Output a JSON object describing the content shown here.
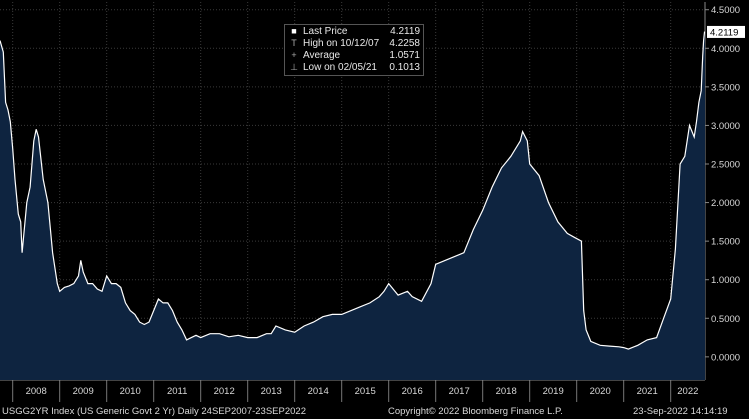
{
  "chart_data": {
    "type": "area",
    "ticker_footer": "USGG2YR Index (US Generic Govt 2 Yr)  Daily 24SEP2007-23SEP2022",
    "copyright": "Copyright© 2022 Bloomberg Finance L.P.",
    "timestamp": "23-Sep-2022 14:14:19",
    "current_value_label": "4.2119",
    "x_ticks": [
      "2008",
      "2009",
      "2010",
      "2011",
      "2012",
      "2013",
      "2014",
      "2015",
      "2016",
      "2017",
      "2018",
      "2019",
      "2020",
      "2021",
      "2022"
    ],
    "y_ticks": [
      "0.0000",
      "0.5000",
      "1.0000",
      "1.5000",
      "2.0000",
      "2.5000",
      "3.0000",
      "3.5000",
      "4.0000",
      "4.5000"
    ],
    "ylim": [
      -0.3,
      4.6
    ],
    "xlim": [
      2007.73,
      2022.73
    ],
    "legend": [
      {
        "symbol": "square",
        "label": "Last Price",
        "value": "4.2119"
      },
      {
        "symbol": "T",
        "label": "High on 10/12/07",
        "value": "4.2258"
      },
      {
        "symbol": "+",
        "label": "Average",
        "value": "1.0571"
      },
      {
        "symbol": "⊥",
        "label": "Low on 02/05/21",
        "value": "0.1013"
      }
    ],
    "colors": {
      "line": "#ffffff",
      "fill": "#0e2440",
      "grid": "#3a3a3a",
      "background": "#000000"
    },
    "series": [
      {
        "x": [
          2007.73,
          2007.8,
          2007.85,
          2007.9,
          2007.95,
          2008.0,
          2008.05,
          2008.12,
          2008.17,
          2008.2,
          2008.3,
          2008.37,
          2008.45,
          2008.5,
          2008.55,
          2008.65,
          2008.75,
          2008.85,
          2008.95,
          2009.0,
          2009.1,
          2009.2,
          2009.3,
          2009.4,
          2009.45,
          2009.5,
          2009.6,
          2009.7,
          2009.8,
          2009.9,
          2010.0,
          2010.1,
          2010.2,
          2010.3,
          2010.4,
          2010.5,
          2010.6,
          2010.7,
          2010.8,
          2010.9,
          2011.0,
          2011.1,
          2011.2,
          2011.3,
          2011.4,
          2011.5,
          2011.6,
          2011.7,
          2011.8,
          2011.9,
          2012.0,
          2012.2,
          2012.4,
          2012.6,
          2012.8,
          2013.0,
          2013.2,
          2013.4,
          2013.5,
          2013.6,
          2013.8,
          2014.0,
          2014.2,
          2014.4,
          2014.6,
          2014.8,
          2015.0,
          2015.2,
          2015.4,
          2015.6,
          2015.8,
          2015.9,
          2016.0,
          2016.2,
          2016.4,
          2016.5,
          2016.7,
          2016.9,
          2017.0,
          2017.2,
          2017.4,
          2017.6,
          2017.8,
          2018.0,
          2018.2,
          2018.4,
          2018.6,
          2018.8,
          2018.85,
          2018.95,
          2019.0,
          2019.2,
          2019.4,
          2019.6,
          2019.8,
          2019.95,
          2020.1,
          2020.15,
          2020.2,
          2020.3,
          2020.5,
          2020.7,
          2020.9,
          2021.0,
          2021.1,
          2021.3,
          2021.5,
          2021.7,
          2021.85,
          2022.0,
          2022.1,
          2022.2,
          2022.3,
          2022.4,
          2022.5,
          2022.55,
          2022.6,
          2022.65,
          2022.68,
          2022.7,
          2022.72,
          2022.73
        ],
        "y": [
          4.1,
          3.95,
          3.3,
          3.2,
          3.05,
          2.7,
          2.3,
          1.85,
          1.75,
          1.35,
          2.0,
          2.2,
          2.8,
          2.95,
          2.85,
          2.3,
          2.0,
          1.35,
          0.95,
          0.85,
          0.9,
          0.92,
          0.95,
          1.05,
          1.25,
          1.1,
          0.95,
          0.95,
          0.88,
          0.85,
          1.05,
          0.95,
          0.95,
          0.9,
          0.7,
          0.6,
          0.55,
          0.45,
          0.42,
          0.45,
          0.6,
          0.75,
          0.7,
          0.7,
          0.6,
          0.45,
          0.35,
          0.22,
          0.25,
          0.28,
          0.25,
          0.3,
          0.3,
          0.26,
          0.28,
          0.25,
          0.25,
          0.3,
          0.3,
          0.4,
          0.35,
          0.32,
          0.4,
          0.45,
          0.52,
          0.55,
          0.55,
          0.6,
          0.65,
          0.7,
          0.78,
          0.85,
          0.95,
          0.8,
          0.85,
          0.78,
          0.72,
          0.95,
          1.2,
          1.25,
          1.3,
          1.35,
          1.65,
          1.9,
          2.2,
          2.45,
          2.6,
          2.8,
          2.92,
          2.8,
          2.5,
          2.35,
          2.0,
          1.75,
          1.6,
          1.55,
          1.5,
          0.6,
          0.35,
          0.2,
          0.15,
          0.14,
          0.13,
          0.12,
          0.1,
          0.15,
          0.22,
          0.25,
          0.5,
          0.75,
          1.4,
          2.5,
          2.6,
          3.0,
          2.85,
          3.05,
          3.3,
          3.45,
          3.9,
          4.1,
          4.21,
          4.2119
        ]
      }
    ]
  }
}
